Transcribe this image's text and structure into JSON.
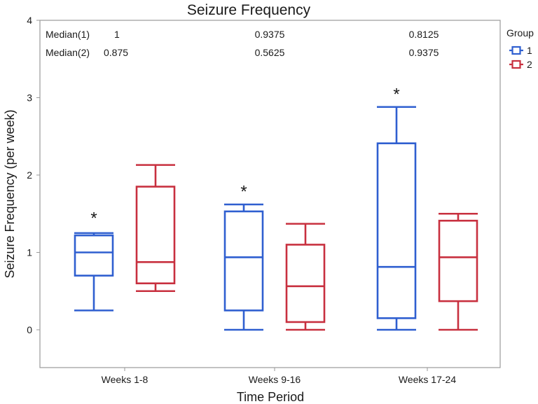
{
  "chart_data": {
    "type": "boxplot",
    "title": "Seizure Frequency",
    "xlabel": "Time Period",
    "ylabel": "Seizure Frequency (per week)",
    "ylim": [
      -0.5,
      4
    ],
    "yticks": [
      0,
      1,
      2,
      3,
      4
    ],
    "categories": [
      "Weeks 1-8",
      "Weeks 9-16",
      "Weeks 17-24"
    ],
    "legend": {
      "title": "Group",
      "position": "right",
      "entries": [
        "1",
        "2"
      ]
    },
    "series": [
      {
        "name": "1",
        "color": "#2f5fd0",
        "boxes": [
          {
            "min": 0.25,
            "q1": 0.7,
            "median": 1.0,
            "q3": 1.22,
            "max": 1.25,
            "outlier_mark": 1.5
          },
          {
            "min": 0.0,
            "q1": 0.25,
            "median": 0.9375,
            "q3": 1.53,
            "max": 1.62,
            "outlier_mark": 1.84
          },
          {
            "min": 0.0,
            "q1": 0.15,
            "median": 0.8125,
            "q3": 2.41,
            "max": 2.88,
            "outlier_mark": 3.1
          }
        ]
      },
      {
        "name": "2",
        "color": "#c8303f",
        "boxes": [
          {
            "min": 0.5,
            "q1": 0.6,
            "median": 0.875,
            "q3": 1.85,
            "max": 2.13,
            "outlier_mark": null
          },
          {
            "min": 0.0,
            "q1": 0.1,
            "median": 0.5625,
            "q3": 1.1,
            "max": 1.37,
            "outlier_mark": null
          },
          {
            "min": 0.0,
            "q1": 0.37,
            "median": 0.9375,
            "q3": 1.41,
            "max": 1.5,
            "outlier_mark": null
          }
        ]
      }
    ],
    "median_table": {
      "rows": [
        {
          "label": "Median(1)",
          "values": [
            "1",
            "0.9375",
            "0.8125"
          ]
        },
        {
          "label": "Median(2)",
          "values": [
            "0.875",
            "0.5625",
            "0.9375"
          ]
        }
      ]
    },
    "outlier_symbol": "*"
  }
}
